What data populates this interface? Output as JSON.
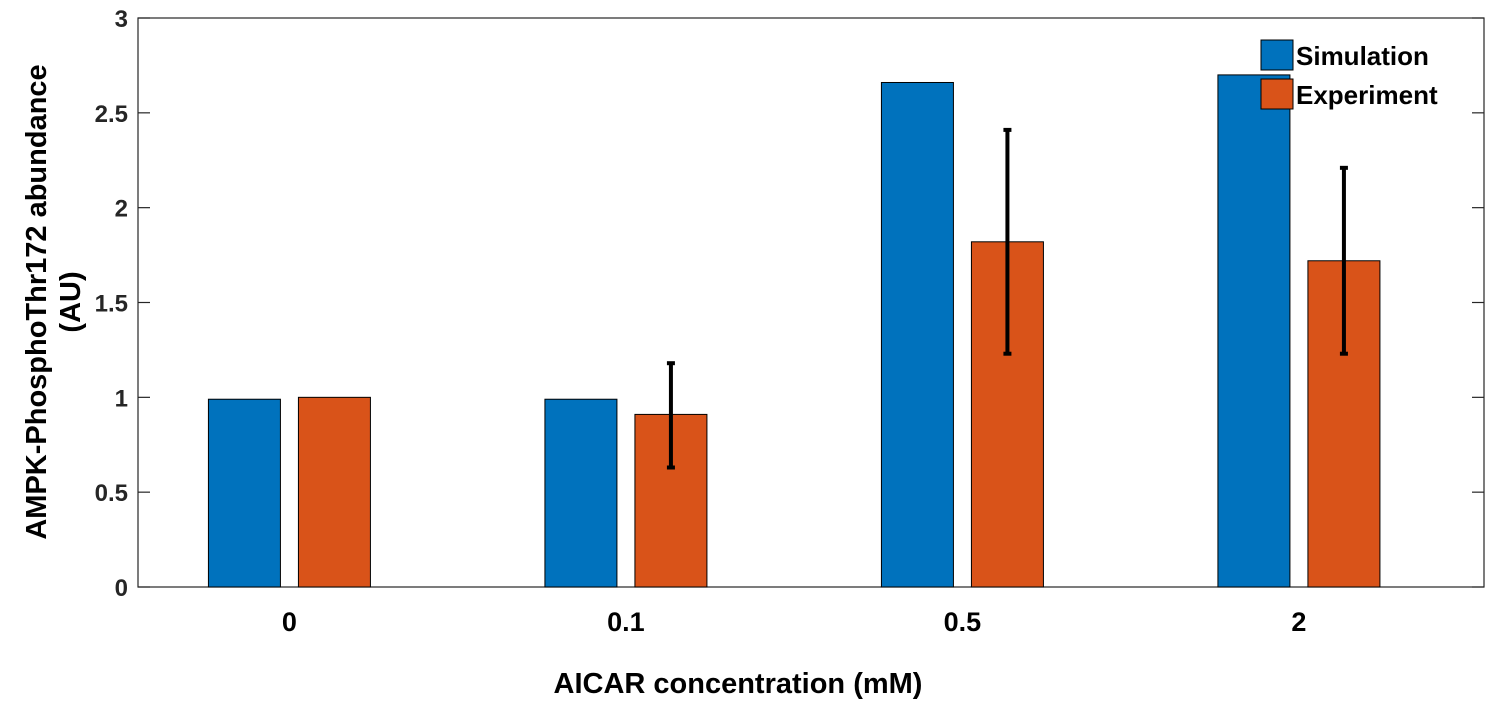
{
  "chart_data": {
    "type": "bar",
    "categories": [
      "0",
      "0.1",
      "0.5",
      "2"
    ],
    "series": [
      {
        "name": "Simulation",
        "color": "#0072BD",
        "values": [
          0.99,
          0.99,
          2.66,
          2.7
        ]
      },
      {
        "name": "Experiment",
        "color": "#D95319",
        "values": [
          1.0,
          0.91,
          1.82,
          1.72
        ],
        "error_low": [
          1.0,
          0.63,
          1.23,
          1.23
        ],
        "error_high": [
          1.0,
          1.18,
          2.41,
          2.21
        ]
      }
    ],
    "title": "",
    "xlabel": "AICAR concentration (mM)",
    "ylabel_lines": [
      "AMPK-PhosphoThr172 abundance",
      "(AU)"
    ],
    "ylim": [
      0,
      3
    ],
    "yticks": [
      0,
      0.5,
      1,
      1.5,
      2,
      2.5,
      3
    ],
    "ytick_labels": [
      "0",
      "0.5",
      "1",
      "1.5",
      "2",
      "2.5",
      "3"
    ],
    "grid": false,
    "legend_position": "top-right"
  }
}
